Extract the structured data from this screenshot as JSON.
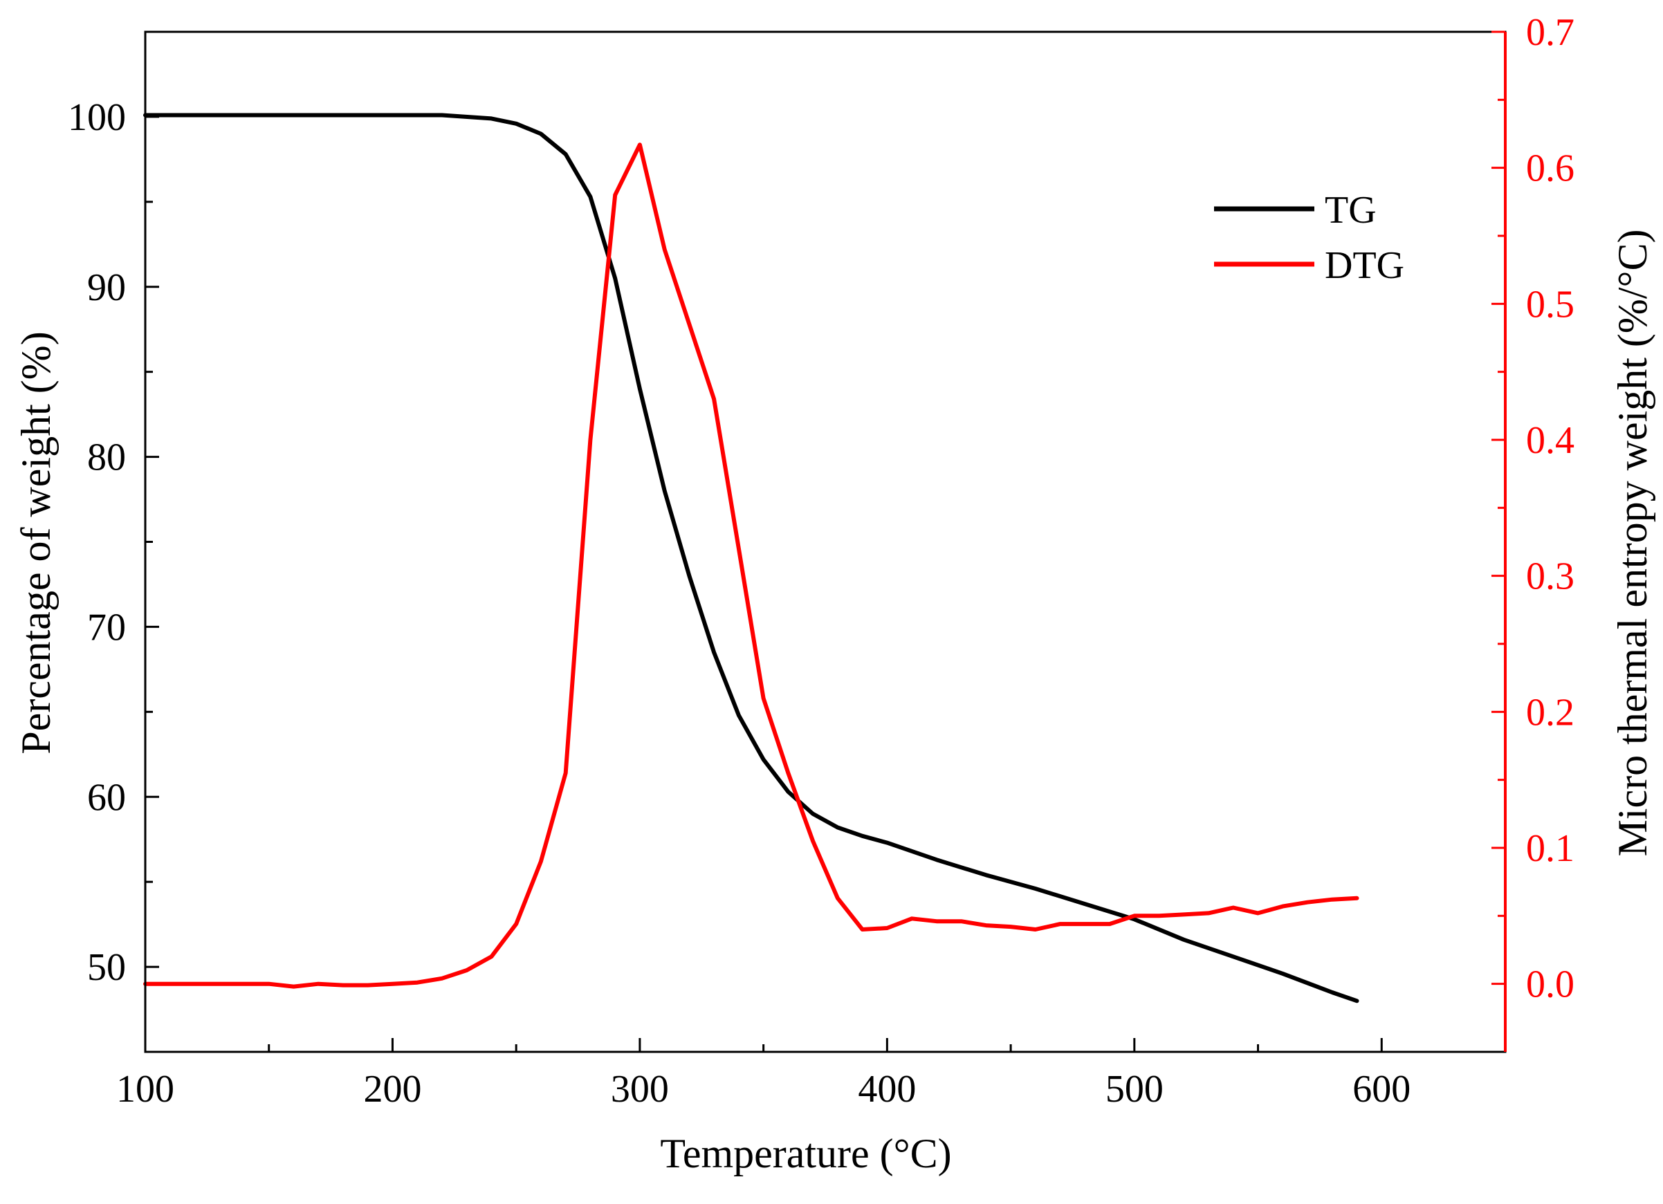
{
  "chart_data": {
    "type": "line",
    "title": "",
    "xlabel": "Temperature (°C)",
    "ylabel": "Percentage of weight (%)",
    "y2label": "Micro thermal entropy weight (%/°C)",
    "xlim": [
      100,
      650
    ],
    "ylim": [
      45,
      105
    ],
    "y2lim": [
      -0.05,
      0.7
    ],
    "xticks": [
      100,
      200,
      300,
      400,
      500,
      600
    ],
    "yticks": [
      50,
      60,
      70,
      80,
      90,
      100
    ],
    "y2ticks": [
      0.0,
      0.1,
      0.2,
      0.3,
      0.4,
      0.5,
      0.6,
      0.7
    ],
    "y2tick_labels": [
      "0.0",
      "0.1",
      "0.2",
      "0.3",
      "0.4",
      "0.5",
      "0.6",
      "0.7"
    ],
    "legend_position": "top-right",
    "colors": {
      "tg": "#000000",
      "dtg": "#ff0000"
    },
    "series": [
      {
        "name": "TG",
        "axis": "left",
        "color": "#000000",
        "x": [
          100,
          150,
          200,
          220,
          240,
          250,
          260,
          270,
          280,
          290,
          300,
          310,
          320,
          330,
          340,
          350,
          360,
          370,
          380,
          390,
          400,
          420,
          440,
          460,
          480,
          500,
          520,
          540,
          560,
          580,
          590
        ],
        "y": [
          100.1,
          100.1,
          100.1,
          100.1,
          99.9,
          99.6,
          99.0,
          97.8,
          95.3,
          90.5,
          84.0,
          78.0,
          73.0,
          68.5,
          64.8,
          62.2,
          60.3,
          59.0,
          58.2,
          57.7,
          57.3,
          56.3,
          55.4,
          54.6,
          53.7,
          52.8,
          51.6,
          50.6,
          49.6,
          48.5,
          48.0
        ]
      },
      {
        "name": "DTG",
        "axis": "right",
        "color": "#ff0000",
        "x": [
          100,
          150,
          160,
          170,
          180,
          190,
          200,
          210,
          220,
          230,
          240,
          250,
          260,
          270,
          280,
          290,
          300,
          310,
          320,
          330,
          340,
          350,
          360,
          370,
          380,
          390,
          400,
          410,
          420,
          430,
          440,
          450,
          460,
          470,
          480,
          490,
          500,
          510,
          520,
          530,
          540,
          550,
          560,
          570,
          580,
          590
        ],
        "y": [
          0.0,
          0.0,
          -0.002,
          0.0,
          -0.001,
          -0.001,
          0.0,
          0.001,
          0.004,
          0.01,
          0.02,
          0.044,
          0.09,
          0.155,
          0.4,
          0.58,
          0.617,
          0.54,
          0.485,
          0.43,
          0.32,
          0.21,
          0.155,
          0.105,
          0.063,
          0.04,
          0.041,
          0.048,
          0.046,
          0.046,
          0.043,
          0.042,
          0.04,
          0.044,
          0.044,
          0.044,
          0.05,
          0.05,
          0.051,
          0.052,
          0.056,
          0.052,
          0.057,
          0.06,
          0.062,
          0.063
        ]
      }
    ]
  }
}
